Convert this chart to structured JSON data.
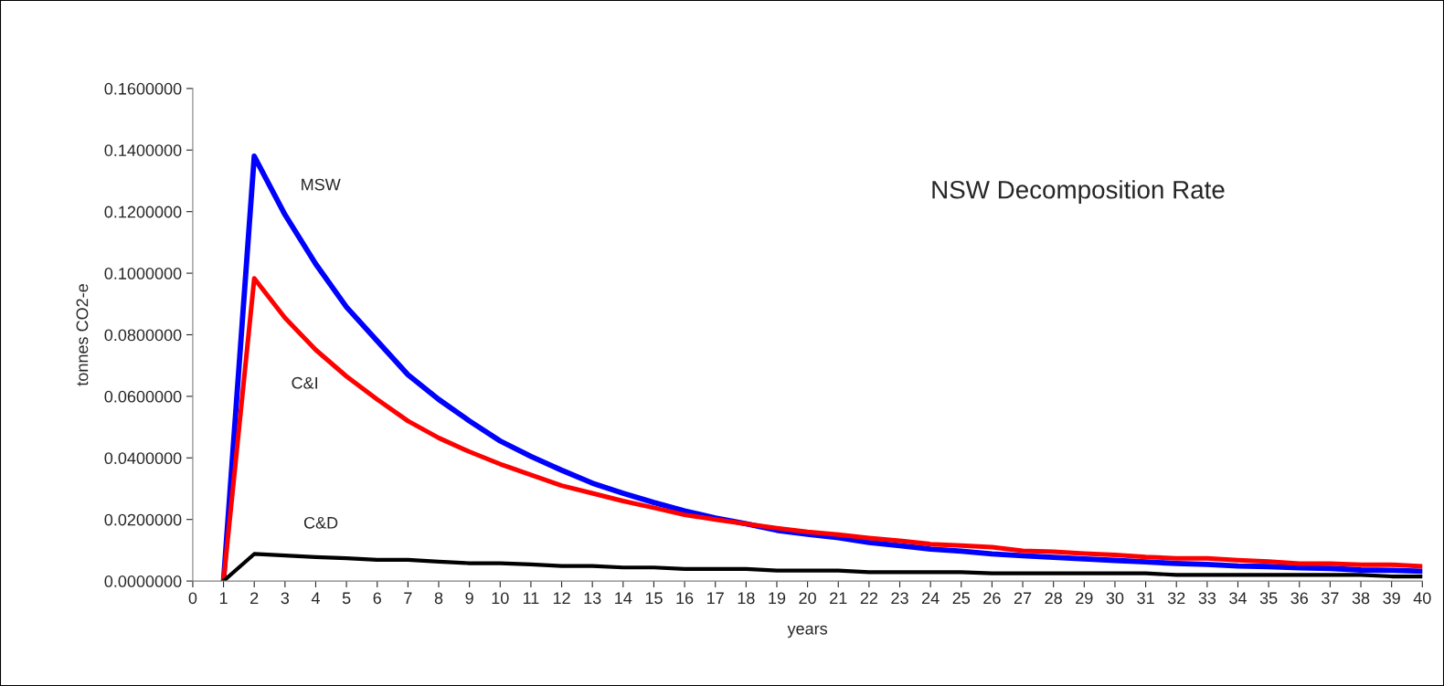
{
  "chart_data": {
    "type": "line",
    "title": "NSW Decomposition Rate",
    "xlabel": "years",
    "ylabel": "tonnes CO2-e",
    "x": [
      1,
      2,
      3,
      4,
      5,
      6,
      7,
      8,
      9,
      10,
      11,
      12,
      13,
      14,
      15,
      16,
      17,
      18,
      19,
      20,
      21,
      22,
      23,
      24,
      25,
      26,
      27,
      28,
      29,
      30,
      31,
      32,
      33,
      34,
      35,
      36,
      37,
      38,
      39,
      40
    ],
    "series": [
      {
        "name": "MSW",
        "color": "#0000ff",
        "values": [
          0,
          0.138,
          0.119,
          0.103,
          0.089,
          0.078,
          0.067,
          0.059,
          0.052,
          0.0455,
          0.0405,
          0.036,
          0.0318,
          0.0285,
          0.0255,
          0.0228,
          0.0205,
          0.0186,
          0.0165,
          0.0152,
          0.0141,
          0.0125,
          0.0115,
          0.0104,
          0.0097,
          0.0088,
          0.0082,
          0.0077,
          0.0072,
          0.0067,
          0.0062,
          0.0057,
          0.0054,
          0.0049,
          0.0047,
          0.0043,
          0.0041,
          0.0036,
          0.0035,
          0.0032
        ]
      },
      {
        "name": "C&I",
        "color": "#ff0000",
        "values": [
          0,
          0.0983,
          0.0855,
          0.0751,
          0.0665,
          0.059,
          0.052,
          0.0465,
          0.042,
          0.038,
          0.0345,
          0.031,
          0.0285,
          0.026,
          0.0238,
          0.0215,
          0.02,
          0.0186,
          0.0172,
          0.016,
          0.0151,
          0.014,
          0.0131,
          0.012,
          0.0115,
          0.011,
          0.0098,
          0.0095,
          0.0089,
          0.0085,
          0.0078,
          0.0074,
          0.0074,
          0.0068,
          0.0063,
          0.0057,
          0.0057,
          0.0053,
          0.0053,
          0.0048
        ]
      },
      {
        "name": "C&D",
        "color": "#000000",
        "values": [
          0,
          0.0088,
          0.0083,
          0.0078,
          0.0074,
          0.0069,
          0.0069,
          0.0063,
          0.0058,
          0.0058,
          0.0054,
          0.0049,
          0.0049,
          0.0044,
          0.0044,
          0.0039,
          0.0039,
          0.0039,
          0.0034,
          0.0034,
          0.0034,
          0.0029,
          0.0029,
          0.0029,
          0.0029,
          0.0025,
          0.0025,
          0.0025,
          0.0025,
          0.0025,
          0.0025,
          0.002,
          0.002,
          0.002,
          0.002,
          0.002,
          0.002,
          0.002,
          0.0015,
          0.0015
        ]
      }
    ],
    "xlim": [
      0,
      40
    ],
    "xticks": [
      0,
      1,
      2,
      3,
      4,
      5,
      6,
      7,
      8,
      9,
      10,
      11,
      12,
      13,
      14,
      15,
      16,
      17,
      18,
      19,
      20,
      21,
      22,
      23,
      24,
      25,
      26,
      27,
      28,
      29,
      30,
      31,
      32,
      33,
      34,
      35,
      36,
      37,
      38,
      39,
      40
    ],
    "ylim": [
      0,
      0.16
    ],
    "yticks": [
      {
        "value": 0,
        "label": "0.0000000"
      },
      {
        "value": 0.02,
        "label": "0.0200000"
      },
      {
        "value": 0.04,
        "label": "0.0400000"
      },
      {
        "value": 0.06,
        "label": "0.0600000"
      },
      {
        "value": 0.08,
        "label": "0.0800000"
      },
      {
        "value": 0.1,
        "label": "0.1000000"
      },
      {
        "value": 0.12,
        "label": "0.1200000"
      },
      {
        "value": 0.14,
        "label": "0.1400000"
      },
      {
        "value": 0.16,
        "label": "0.1600000"
      }
    ],
    "grid": false,
    "legend": false,
    "marker": "none",
    "line_style": "solid"
  }
}
